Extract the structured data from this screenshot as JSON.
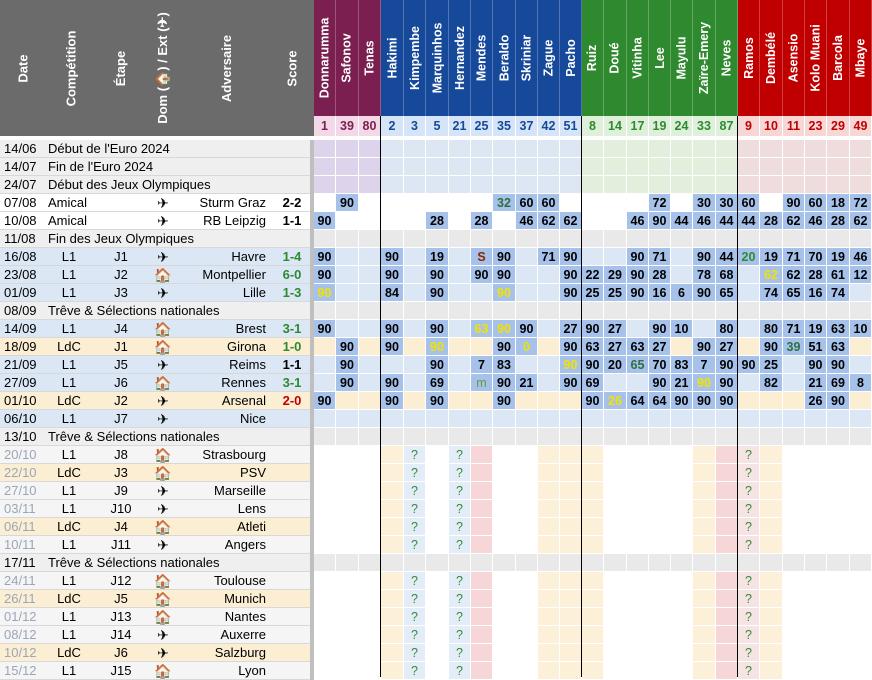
{
  "headers": {
    "date": "Date",
    "competition": "Compétition",
    "etape": "Étape",
    "domext": "Dom (🏠) / Ext (✈)",
    "adversaire": "Adversaire",
    "score": "Score"
  },
  "players": [
    {
      "name": "Donnarumma",
      "num": "1",
      "group": "gk"
    },
    {
      "name": "Safonov",
      "num": "39",
      "group": "gk"
    },
    {
      "name": "Tenas",
      "num": "80",
      "group": "gk"
    },
    {
      "name": "Hakimi",
      "num": "2",
      "group": "def"
    },
    {
      "name": "Kimpembe",
      "num": "3",
      "group": "def"
    },
    {
      "name": "Marquinhos",
      "num": "5",
      "group": "def"
    },
    {
      "name": "Hernandez",
      "num": "21",
      "group": "def"
    },
    {
      "name": "Mendes",
      "num": "25",
      "group": "def"
    },
    {
      "name": "Beraldo",
      "num": "35",
      "group": "def"
    },
    {
      "name": "Skriniar",
      "num": "37",
      "group": "def"
    },
    {
      "name": "Zague",
      "num": "42",
      "group": "def"
    },
    {
      "name": "Pacho",
      "num": "51",
      "group": "def"
    },
    {
      "name": "Ruiz",
      "num": "8",
      "group": "mid"
    },
    {
      "name": "Doué",
      "num": "14",
      "group": "mid"
    },
    {
      "name": "Vitinha",
      "num": "17",
      "group": "mid"
    },
    {
      "name": "Lee",
      "num": "19",
      "group": "mid"
    },
    {
      "name": "Mayulu",
      "num": "24",
      "group": "mid"
    },
    {
      "name": "Zaïre-Emery",
      "num": "33",
      "group": "mid"
    },
    {
      "name": "Neves",
      "num": "87",
      "group": "mid"
    },
    {
      "name": "Ramos",
      "num": "9",
      "group": "att"
    },
    {
      "name": "Dembélé",
      "num": "10",
      "group": "att"
    },
    {
      "name": "Asensio",
      "num": "11",
      "group": "att"
    },
    {
      "name": "Kolo Muani",
      "num": "23",
      "group": "att"
    },
    {
      "name": "Barcola",
      "num": "29",
      "group": "att"
    },
    {
      "name": "Mbaye",
      "num": "49",
      "group": "att"
    }
  ],
  "group_colors": {
    "gk": "#7a1f4f",
    "def": "#17499a",
    "mid": "#2f8a2f",
    "att": "#c00000"
  },
  "rows": [
    {
      "type": "event",
      "date": "14/06",
      "label": "Début de l'Euro 2024",
      "vals": {}
    },
    {
      "type": "event",
      "date": "14/07",
      "label": "Fin de l'Euro 2024",
      "vals": {}
    },
    {
      "type": "event",
      "date": "24/07",
      "label": "Début des Jeux Olympiques",
      "vals": {}
    },
    {
      "type": "friendly",
      "date": "07/08",
      "comp": "Amical",
      "etape": "",
      "venue": "away",
      "opp": "Sturm Graz",
      "score": "2-2",
      "res": "d",
      "vals": {
        "1": "90",
        "8": "32",
        "9": "60",
        "10": "60",
        "15": "72",
        "17": "30",
        "18": "30",
        "19": "60",
        "21": "90",
        "22": "60",
        "23": "18",
        "24": "72"
      }
    },
    {
      "type": "friendly",
      "date": "10/08",
      "comp": "Amical",
      "etape": "",
      "venue": "away",
      "opp": "RB Leipzig",
      "score": "1-1",
      "res": "d",
      "vals": {
        "0": "90",
        "5": "28",
        "7": "28",
        "9": "46",
        "10": "62",
        "11": "62",
        "14": "46",
        "15": "90",
        "16": "44",
        "17": "46",
        "18": "44",
        "19": "44",
        "20": "28",
        "21": "62",
        "22": "46",
        "23": "28",
        "24": "62"
      }
    },
    {
      "type": "event",
      "date": "11/08",
      "label": "Fin des Jeux Olympiques",
      "vals": {}
    },
    {
      "type": "match",
      "date": "16/08",
      "comp": "L1",
      "etape": "J1",
      "venue": "away",
      "opp": "Havre",
      "score": "1-4",
      "res": "w",
      "vals": {
        "0": "90",
        "3": "90",
        "5": "19",
        "7": "S",
        "8": "90",
        "10": "71",
        "11": "90",
        "14": "90",
        "15": "71",
        "17": "90",
        "18": "44",
        "19": "20",
        "20": "19",
        "21": "71",
        "22": "70",
        "23": "19",
        "24": "46"
      }
    },
    {
      "type": "match",
      "date": "23/08",
      "comp": "L1",
      "etape": "J2",
      "venue": "home",
      "opp": "Montpellier",
      "score": "6-0",
      "res": "w",
      "vals": {
        "0": "90",
        "3": "90",
        "5": "90",
        "7": "90",
        "8": "90",
        "11": "90",
        "12": "22",
        "13": "29",
        "14": "90",
        "15": "28",
        "17": "78",
        "18": "68",
        "20": "62",
        "21": "62",
        "22": "28",
        "23": "61",
        "24": "12"
      }
    },
    {
      "type": "match",
      "date": "01/09",
      "comp": "L1",
      "etape": "J3",
      "venue": "away",
      "opp": "Lille",
      "score": "1-3",
      "res": "w",
      "vals": {
        "0": "90",
        "3": "84",
        "5": "90",
        "8": "90",
        "11": "90",
        "12": "25",
        "13": "25",
        "14": "90",
        "15": "16",
        "16": "6",
        "17": "90",
        "18": "65",
        "20": "74",
        "21": "65",
        "22": "16",
        "23": "74"
      }
    },
    {
      "type": "event",
      "date": "08/09",
      "label": "Trêve & Sélections nationales",
      "vals": {}
    },
    {
      "type": "match",
      "date": "14/09",
      "comp": "L1",
      "etape": "J4",
      "venue": "home",
      "opp": "Brest",
      "score": "3-1",
      "res": "w",
      "vals": {
        "0": "90",
        "3": "90",
        "5": "90",
        "7": "63",
        "8": "90",
        "9": "90",
        "11": "27",
        "12": "90",
        "13": "27",
        "15": "90",
        "16": "10",
        "18": "80",
        "20": "80",
        "21": "71",
        "22": "19",
        "23": "63",
        "24": "10"
      }
    },
    {
      "type": "cl",
      "date": "18/09",
      "comp": "LdC",
      "etape": "J1",
      "venue": "home",
      "opp": "Girona",
      "score": "1-0",
      "res": "w",
      "vals": {
        "1": "90",
        "3": "90",
        "5": "90",
        "8": "90",
        "9": "0",
        "11": "90",
        "12": "63",
        "13": "27",
        "14": "63",
        "15": "27",
        "17": "90",
        "18": "27",
        "20": "90",
        "21": "39",
        "22": "51",
        "23": "63"
      }
    },
    {
      "type": "match",
      "date": "21/09",
      "comp": "L1",
      "etape": "J5",
      "venue": "away",
      "opp": "Reims",
      "score": "1-1",
      "res": "d",
      "vals": {
        "1": "90",
        "5": "90",
        "7": "7",
        "8": "83",
        "11": "90",
        "12": "90",
        "13": "20",
        "14": "65",
        "15": "70",
        "16": "83",
        "17": "7",
        "18": "90",
        "19": "90",
        "20": "25",
        "22": "90",
        "23": "90"
      }
    },
    {
      "type": "match",
      "date": "27/09",
      "comp": "L1",
      "etape": "J6",
      "venue": "home",
      "opp": "Rennes",
      "score": "3-1",
      "res": "w",
      "vals": {
        "1": "90",
        "3": "90",
        "5": "69",
        "7": "m",
        "8": "90",
        "9": "21",
        "11": "90",
        "12": "69",
        "15": "90",
        "16": "21",
        "17": "90",
        "18": "90",
        "20": "82",
        "22": "21",
        "23": "69",
        "24": "8"
      }
    },
    {
      "type": "cl",
      "date": "01/10",
      "comp": "LdC",
      "etape": "J2",
      "venue": "away",
      "opp": "Arsenal",
      "score": "2-0",
      "res": "l",
      "vals": {
        "0": "90",
        "3": "90",
        "5": "90",
        "8": "90",
        "12": "90",
        "13": "26",
        "14": "64",
        "15": "64",
        "16": "90",
        "17": "90",
        "18": "90",
        "22": "26",
        "23": "90"
      }
    },
    {
      "type": "match",
      "date": "06/10",
      "comp": "L1",
      "etape": "J7",
      "venue": "away",
      "opp": "Nice",
      "score": "",
      "res": "",
      "vals": {}
    },
    {
      "type": "event",
      "date": "13/10",
      "label": "Trêve & Sélections nationales",
      "vals": {}
    },
    {
      "type": "future",
      "date": "20/10",
      "comp": "L1",
      "etape": "J8",
      "venue": "home",
      "opp": "Strasbourg",
      "score": "",
      "res": "",
      "vals": {
        "4": "?",
        "6": "?",
        "19": "?"
      }
    },
    {
      "type": "futurecl",
      "date": "22/10",
      "comp": "LdC",
      "etape": "J3",
      "venue": "home",
      "opp": "PSV",
      "score": "",
      "res": "",
      "vals": {
        "4": "?",
        "6": "?",
        "19": "?"
      }
    },
    {
      "type": "future",
      "date": "27/10",
      "comp": "L1",
      "etape": "J9",
      "venue": "away",
      "opp": "Marseille",
      "score": "",
      "res": "",
      "vals": {
        "4": "?",
        "6": "?",
        "19": "?"
      }
    },
    {
      "type": "future",
      "date": "03/11",
      "comp": "L1",
      "etape": "J10",
      "venue": "away",
      "opp": "Lens",
      "score": "",
      "res": "",
      "vals": {
        "4": "?",
        "6": "?",
        "19": "?"
      }
    },
    {
      "type": "futurecl",
      "date": "06/11",
      "comp": "LdC",
      "etape": "J4",
      "venue": "home",
      "opp": "Atleti",
      "score": "",
      "res": "",
      "vals": {
        "4": "?",
        "6": "?",
        "19": "?"
      }
    },
    {
      "type": "future",
      "date": "10/11",
      "comp": "L1",
      "etape": "J11",
      "venue": "away",
      "opp": "Angers",
      "score": "",
      "res": "",
      "vals": {
        "4": "?",
        "6": "?",
        "19": "?"
      }
    },
    {
      "type": "event",
      "date": "17/11",
      "label": "Trêve & Sélections nationales",
      "vals": {}
    },
    {
      "type": "future",
      "date": "24/11",
      "comp": "L1",
      "etape": "J12",
      "venue": "home",
      "opp": "Toulouse",
      "score": "",
      "res": "",
      "vals": {
        "4": "?",
        "6": "?",
        "19": "?"
      }
    },
    {
      "type": "futurecl",
      "date": "26/11",
      "comp": "LdC",
      "etape": "J5",
      "venue": "home",
      "opp": "Munich",
      "score": "",
      "res": "",
      "vals": {
        "4": "?",
        "6": "?",
        "19": "?"
      }
    },
    {
      "type": "future",
      "date": "01/12",
      "comp": "L1",
      "etape": "J13",
      "venue": "home",
      "opp": "Nantes",
      "score": "",
      "res": "",
      "vals": {
        "4": "?",
        "6": "?",
        "19": "?"
      }
    },
    {
      "type": "future",
      "date": "08/12",
      "comp": "L1",
      "etape": "J14",
      "venue": "away",
      "opp": "Auxerre",
      "score": "",
      "res": "",
      "vals": {
        "4": "?",
        "6": "?",
        "19": "?"
      }
    },
    {
      "type": "futurecl",
      "date": "10/12",
      "comp": "LdC",
      "etape": "J6",
      "venue": "away",
      "opp": "Salzburg",
      "score": "",
      "res": "",
      "vals": {
        "4": "?",
        "6": "?",
        "19": "?"
      }
    },
    {
      "type": "future",
      "date": "15/12",
      "comp": "L1",
      "etape": "J15",
      "venue": "home",
      "opp": "Lyon",
      "score": "",
      "res": "",
      "vals": {
        "4": "?",
        "6": "?",
        "19": "?"
      }
    }
  ]
}
